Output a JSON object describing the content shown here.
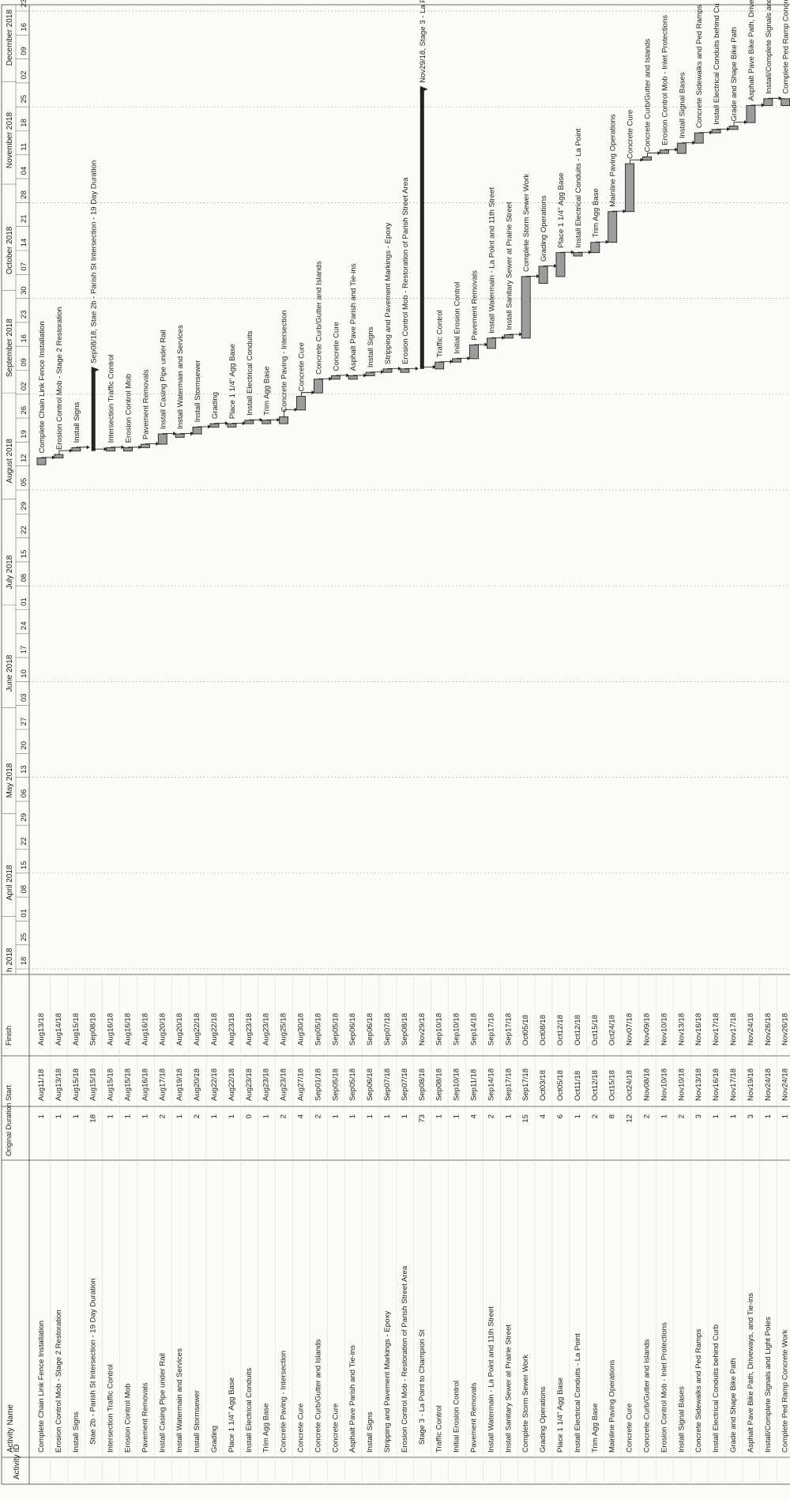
{
  "header": {
    "id_label": "Activity ID",
    "name_label": "Activity Name",
    "duration_label": "Original Duration",
    "start_label": "Start",
    "finish_label": "Finish"
  },
  "timescale": {
    "months": [
      {
        "label": "h 2018",
        "date": "2018-03-15"
      },
      {
        "label": "April 2018",
        "date": "2018-04-01"
      },
      {
        "label": "May 2018",
        "date": "2018-05-01"
      },
      {
        "label": "June 2018",
        "date": "2018-06-01"
      },
      {
        "label": "July 2018",
        "date": "2018-07-01"
      },
      {
        "label": "August 2018",
        "date": "2018-08-01"
      },
      {
        "label": "September 2018",
        "date": "2018-09-01"
      },
      {
        "label": "October 2018",
        "date": "2018-10-01"
      },
      {
        "label": "November 2018",
        "date": "2018-11-01"
      },
      {
        "label": "December 2018",
        "date": "2018-12-01"
      }
    ],
    "weeks": [
      {
        "label": "18",
        "date": "2018-03-18"
      },
      {
        "label": "25",
        "date": "2018-03-25"
      },
      {
        "label": "01",
        "date": "2018-04-01"
      },
      {
        "label": "08",
        "date": "2018-04-08"
      },
      {
        "label": "15",
        "date": "2018-04-15"
      },
      {
        "label": "22",
        "date": "2018-04-22"
      },
      {
        "label": "29",
        "date": "2018-04-29"
      },
      {
        "label": "06",
        "date": "2018-05-06"
      },
      {
        "label": "13",
        "date": "2018-05-13"
      },
      {
        "label": "20",
        "date": "2018-05-20"
      },
      {
        "label": "27",
        "date": "2018-05-27"
      },
      {
        "label": "03",
        "date": "2018-06-03"
      },
      {
        "label": "10",
        "date": "2018-06-10"
      },
      {
        "label": "17",
        "date": "2018-06-17"
      },
      {
        "label": "24",
        "date": "2018-06-24"
      },
      {
        "label": "01",
        "date": "2018-07-01"
      },
      {
        "label": "08",
        "date": "2018-07-08"
      },
      {
        "label": "15",
        "date": "2018-07-15"
      },
      {
        "label": "22",
        "date": "2018-07-22"
      },
      {
        "label": "29",
        "date": "2018-07-29"
      },
      {
        "label": "05",
        "date": "2018-08-05"
      },
      {
        "label": "12",
        "date": "2018-08-12"
      },
      {
        "label": "19",
        "date": "2018-08-19"
      },
      {
        "label": "26",
        "date": "2018-08-26"
      },
      {
        "label": "02",
        "date": "2018-09-02"
      },
      {
        "label": "09",
        "date": "2018-09-09"
      },
      {
        "label": "16",
        "date": "2018-09-16"
      },
      {
        "label": "23",
        "date": "2018-09-23"
      },
      {
        "label": "30",
        "date": "2018-09-30"
      },
      {
        "label": "07",
        "date": "2018-10-07"
      },
      {
        "label": "14",
        "date": "2018-10-14"
      },
      {
        "label": "21",
        "date": "2018-10-21"
      },
      {
        "label": "28",
        "date": "2018-10-28"
      },
      {
        "label": "04",
        "date": "2018-11-04"
      },
      {
        "label": "11",
        "date": "2018-11-11"
      },
      {
        "label": "18",
        "date": "2018-11-18"
      },
      {
        "label": "25",
        "date": "2018-11-25"
      },
      {
        "label": "02",
        "date": "2018-12-02"
      },
      {
        "label": "09",
        "date": "2018-12-09"
      },
      {
        "label": "16",
        "date": "2018-12-16"
      },
      {
        "label": "23",
        "date": "2018-12-23"
      }
    ]
  },
  "activities": [
    {
      "name": "Complete Chain Link Fence Installation",
      "dur": "1",
      "start": "Aug11/18",
      "finish": "Aug13/18",
      "s": "2018-08-11",
      "f": "2018-08-13",
      "label": "Complete Chain Link Fence Installation"
    },
    {
      "name": "Erosion Control Mob - Stage 2 Restoration",
      "dur": "1",
      "start": "Aug13/18",
      "finish": "Aug14/18",
      "s": "2018-08-13",
      "f": "2018-08-14",
      "label": "Erosion Control Mob - Stage 2 Restoration"
    },
    {
      "name": "Install Signs",
      "dur": "1",
      "start": "Aug15/18",
      "finish": "Aug15/18",
      "s": "2018-08-15",
      "f": "2018-08-16",
      "label": "Install Signs"
    },
    {
      "name": "Stae 2b - Parish St Intersection - 19 Day Duration",
      "dur": "18",
      "start": "Aug15/18",
      "finish": "Sep08/18",
      "s": "2018-08-15",
      "f": "2018-09-08",
      "label": "Sep08/18, Stae 2b - Parish St Intersection - 19 Day Duration",
      "summary": true
    },
    {
      "name": "Intersection Traffic Control",
      "dur": "1",
      "start": "Aug15/18",
      "finish": "Aug16/18",
      "s": "2018-08-15",
      "f": "2018-08-16",
      "label": "Intersection Traffic Control"
    },
    {
      "name": "Erosion Control Mob",
      "dur": "1",
      "start": "Aug15/18",
      "finish": "Aug16/18",
      "s": "2018-08-15",
      "f": "2018-08-16",
      "label": "Erosion Control Mob"
    },
    {
      "name": "Pavement Removals",
      "dur": "1",
      "start": "Aug16/18",
      "finish": "Aug16/18",
      "s": "2018-08-16",
      "f": "2018-08-17",
      "label": "Pavement Removals"
    },
    {
      "name": "Install Casing Pipe under Rail",
      "dur": "2",
      "start": "Aug17/18",
      "finish": "Aug20/18",
      "s": "2018-08-17",
      "f": "2018-08-20",
      "label": "Install Casing Pipe under Rail"
    },
    {
      "name": "Install Watermain and Services",
      "dur": "1",
      "start": "Aug19/18",
      "finish": "Aug20/18",
      "s": "2018-08-19",
      "f": "2018-08-20",
      "label": "Install Watermain and Services"
    },
    {
      "name": "Install Stormsewer",
      "dur": "2",
      "start": "Aug20/18",
      "finish": "Aug22/18",
      "s": "2018-08-20",
      "f": "2018-08-22",
      "label": "Install Stormsewer"
    },
    {
      "name": "Grading",
      "dur": "1",
      "start": "Aug22/18",
      "finish": "Aug22/18",
      "s": "2018-08-22",
      "f": "2018-08-23",
      "label": "Grading"
    },
    {
      "name": "Place 1 1/4\" Agg Base",
      "dur": "1",
      "start": "Aug22/18",
      "finish": "Aug23/18",
      "s": "2018-08-22",
      "f": "2018-08-23",
      "label": "Place 1 1/4\" Agg Base"
    },
    {
      "name": "Install Electrical Conduits",
      "dur": "0",
      "start": "Aug23/18",
      "finish": "Aug23/18",
      "s": "2018-08-23",
      "f": "2018-08-24",
      "label": "Install Electrical Conduits"
    },
    {
      "name": "Trim Agg Base",
      "dur": "1",
      "start": "Aug23/18",
      "finish": "Aug23/18",
      "s": "2018-08-23",
      "f": "2018-08-24",
      "label": "Trim Agg Base"
    },
    {
      "name": "Concrete Paving - Intersection",
      "dur": "2",
      "start": "Aug23/18",
      "finish": "Aug25/18",
      "s": "2018-08-23",
      "f": "2018-08-25",
      "label": "Concrete Paving - Intersection"
    },
    {
      "name": "Concrete Cure",
      "dur": "4",
      "start": "Aug27/18",
      "finish": "Aug30/18",
      "s": "2018-08-27",
      "f": "2018-08-31",
      "label": "Concrete Cure"
    },
    {
      "name": "Concrete Curb/Gutter and Islands",
      "dur": "2",
      "start": "Sep01/18",
      "finish": "Sep05/18",
      "s": "2018-09-01",
      "f": "2018-09-05",
      "label": "Concrete Curb/Gutter and Islands"
    },
    {
      "name": "Concrete Cure",
      "dur": "1",
      "start": "Sep05/18",
      "finish": "Sep05/18",
      "s": "2018-09-05",
      "f": "2018-09-06",
      "label": "Concrete Cure"
    },
    {
      "name": "Asphalt Pave Parish and Tie-ins",
      "dur": "1",
      "start": "Sep05/18",
      "finish": "Sep06/18",
      "s": "2018-09-05",
      "f": "2018-09-06",
      "label": "Asphalt Pave Parish and Tie-ins"
    },
    {
      "name": "Install Signs",
      "dur": "1",
      "start": "Sep06/18",
      "finish": "Sep06/18",
      "s": "2018-09-06",
      "f": "2018-09-07",
      "label": "Install Signs"
    },
    {
      "name": "Stripping and Pavement Markings - Epoxy",
      "dur": "1",
      "start": "Sep07/18",
      "finish": "Sep07/18",
      "s": "2018-09-07",
      "f": "2018-09-08",
      "label": "Stripping and Pavement Markings - Epoxy"
    },
    {
      "name": "Erosion Control Mob - Restoration of Parish Street Area",
      "dur": "1",
      "start": "Sep07/18",
      "finish": "Sep08/18",
      "s": "2018-09-07",
      "f": "2018-09-08",
      "label": "Erosion Control Mob - Restoration of Parish Street Area"
    },
    {
      "name": "Stage 3 - La Point to Champion St",
      "dur": "73",
      "start": "Sep08/18",
      "finish": "Nov29/18",
      "s": "2018-09-08",
      "f": "2018-11-29",
      "label": "Nov29/18, Stage 3 - La P",
      "summary": true
    },
    {
      "name": "Traffic Control",
      "dur": "1",
      "start": "Sep08/18",
      "finish": "Sep10/18",
      "s": "2018-09-08",
      "f": "2018-09-10",
      "label": "Traffic Control"
    },
    {
      "name": "Initial Erosion Control",
      "dur": "1",
      "start": "Sep10/18",
      "finish": "Sep10/18",
      "s": "2018-09-10",
      "f": "2018-09-11",
      "label": "Initial Erosion Control"
    },
    {
      "name": "Pavement Removals",
      "dur": "4",
      "start": "Sep11/18",
      "finish": "Sep14/18",
      "s": "2018-09-11",
      "f": "2018-09-15",
      "label": "Pavement Removals"
    },
    {
      "name": "Install Watermain - La Point and 11th Street",
      "dur": "2",
      "start": "Sep14/18",
      "finish": "Sep17/18",
      "s": "2018-09-14",
      "f": "2018-09-17",
      "label": "Install Watermain - La Point and 11th Street"
    },
    {
      "name": "Install Sanitary Sewer at Prairie Street",
      "dur": "1",
      "start": "Sep17/18",
      "finish": "Sep17/18",
      "s": "2018-09-17",
      "f": "2018-09-18",
      "label": "Install Sanitary Sewer at Prairie Street"
    },
    {
      "name": "Complete Storm Sewer Work",
      "dur": "15",
      "start": "Sep17/18",
      "finish": "Oct05/18",
      "s": "2018-09-17",
      "f": "2018-10-05",
      "label": "Complete Storm Sewer Work"
    },
    {
      "name": "Grading Operations",
      "dur": "4",
      "start": "Oct03/18",
      "finish": "Oct08/18",
      "s": "2018-10-03",
      "f": "2018-10-08",
      "label": "Grading Operations"
    },
    {
      "name": "Place 1 1/4\" Agg Base",
      "dur": "6",
      "start": "Oct05/18",
      "finish": "Oct12/18",
      "s": "2018-10-05",
      "f": "2018-10-12",
      "label": "Place 1 1/4\" Agg Base"
    },
    {
      "name": "Install Electrical Conduits - La Point",
      "dur": "1",
      "start": "Oct11/18",
      "finish": "Oct12/18",
      "s": "2018-10-11",
      "f": "2018-10-12",
      "label": "Install Electrical Conduits - La Point"
    },
    {
      "name": "Trim Agg Base",
      "dur": "2",
      "start": "Oct12/18",
      "finish": "Oct15/18",
      "s": "2018-10-12",
      "f": "2018-10-15",
      "label": "Trim Agg Base"
    },
    {
      "name": "Mainline Paving Operations",
      "dur": "8",
      "start": "Oct15/18",
      "finish": "Oct24/18",
      "s": "2018-10-15",
      "f": "2018-10-24",
      "label": "Mainline Paving Operations"
    },
    {
      "name": "Concrete Cure",
      "dur": "12",
      "start": "Oct24/18",
      "finish": "Nov07/18",
      "s": "2018-10-24",
      "f": "2018-11-07",
      "label": "Concrete Cure"
    },
    {
      "name": "Concrete Curb/Gutter and Islands",
      "dur": "2",
      "start": "Nov08/18",
      "finish": "Nov09/18",
      "s": "2018-11-08",
      "f": "2018-11-09",
      "label": "Concrete Curb/Gutter and Islands"
    },
    {
      "name": "Erosion Control Mob - Inlet Protections",
      "dur": "1",
      "start": "Nov10/18",
      "finish": "Nov10/18",
      "s": "2018-11-10",
      "f": "2018-11-11",
      "label": "Erosion Control Mob - Inlet Protections"
    },
    {
      "name": "Install Signal Bases",
      "dur": "2",
      "start": "Nov10/18",
      "finish": "Nov13/18",
      "s": "2018-11-10",
      "f": "2018-11-13",
      "label": "Install Signal Bases"
    },
    {
      "name": "Concrete Sidewalks and Ped Ramps",
      "dur": "3",
      "start": "Nov13/18",
      "finish": "Nov16/18",
      "s": "2018-11-13",
      "f": "2018-11-16",
      "label": "Concrete Sidewalks and Ped Ramps"
    },
    {
      "name": "Install Electrical Conduits behind Curb",
      "dur": "1",
      "start": "Nov16/18",
      "finish": "Nov17/18",
      "s": "2018-11-16",
      "f": "2018-11-17",
      "label": "Install Electrical Conduits behind Cu"
    },
    {
      "name": "Grade and Shape Bike Path",
      "dur": "1",
      "start": "Nov17/18",
      "finish": "Nov17/18",
      "s": "2018-11-17",
      "f": "2018-11-18",
      "label": "Grade and Shape Bike Path"
    },
    {
      "name": "Asphalt Pave Bike Path, Driveways, and Tie-ins",
      "dur": "3",
      "start": "Nov19/18",
      "finish": "Nov24/18",
      "s": "2018-11-19",
      "f": "2018-11-24",
      "label": "Asphalt Pave Bike Path, Drive"
    },
    {
      "name": "Install/Complete Signals and Light Poles",
      "dur": "1",
      "start": "Nov24/18",
      "finish": "Nov26/18",
      "s": "2018-11-24",
      "f": "2018-11-26",
      "label": "Install/Complete Signals and"
    },
    {
      "name": "Complete Ped Ramp Concrete Work",
      "dur": "1",
      "start": "Nov24/18",
      "finish": "Nov26/18",
      "s": "2018-11-24",
      "f": "2018-11-26",
      "label": "Complete Ped Ramp Concre"
    }
  ]
}
